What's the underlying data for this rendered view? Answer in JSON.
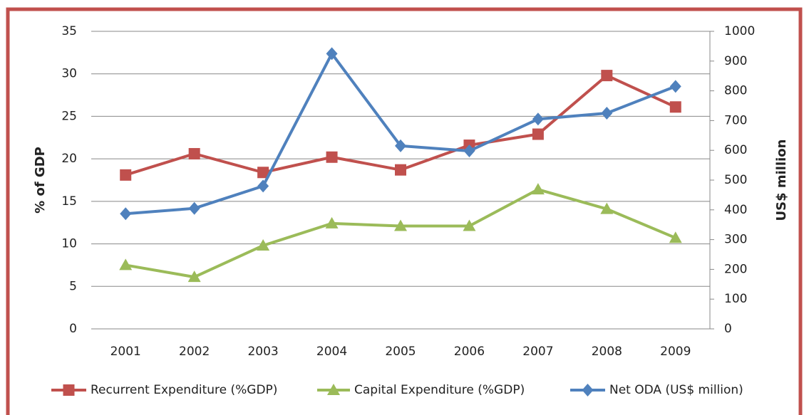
{
  "chart_data": {
    "type": "line",
    "categories": [
      "2001",
      "2002",
      "2003",
      "2004",
      "2005",
      "2006",
      "2007",
      "2008",
      "2009"
    ],
    "series": [
      {
        "name": "Recurrent Expenditure (%GDP)",
        "color": "#c0504d",
        "marker": "square",
        "values": [
          18.1,
          20.6,
          18.4,
          20.2,
          18.7,
          21.6,
          22.9,
          29.8,
          26.1
        ]
      },
      {
        "name": "Capital Expenditure (%GDP)",
        "color": "#9bbb59",
        "marker": "triangle",
        "values": [
          7.5,
          6.1,
          9.8,
          12.4,
          12.1,
          12.1,
          16.4,
          14.1,
          10.7
        ]
      },
      {
        "name": "Net ODA (US$ million)",
        "color": "#4f81bd",
        "marker": "diamond",
        "axis": "y2",
        "values": [
          387,
          405,
          480,
          925,
          615,
          598,
          705,
          725,
          815
        ]
      }
    ],
    "y_label": "% of GDP",
    "y2_label": "US$ million",
    "ylim": [
      0,
      35
    ],
    "yticks": [
      0,
      5,
      10,
      15,
      20,
      25,
      30,
      35
    ],
    "y2lim": [
      0,
      1000
    ],
    "y2ticks": [
      0,
      100,
      200,
      300,
      400,
      500,
      600,
      700,
      800,
      900,
      1000
    ],
    "grid": true,
    "legend": "bottom"
  }
}
